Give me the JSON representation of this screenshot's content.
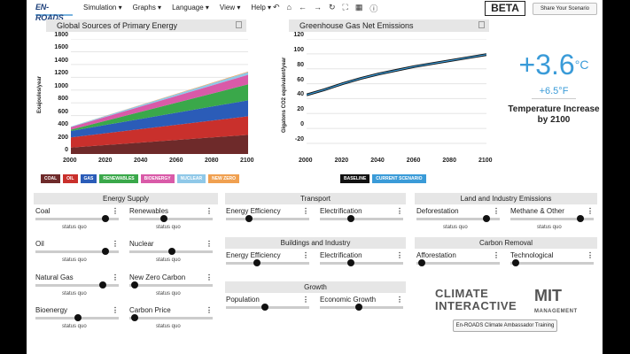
{
  "logo": "EN-ROADS",
  "menus": [
    "Simulation ▾",
    "Graphs ▾",
    "Language ▾",
    "View ▾",
    "Help ▾"
  ],
  "tools": [
    "↶",
    "⌂",
    "←",
    "→",
    "↻",
    "⛶",
    "▦",
    "ⓘ"
  ],
  "beta": "BETA",
  "share": "Share Your Scenario",
  "energy_chart": {
    "title": "Global Sources of Primary Energy",
    "ylabel": "Exajoules/year",
    "yticks": [
      "1800",
      "1600",
      "1400",
      "1200",
      "1000",
      "800",
      "600",
      "400",
      "200",
      "0"
    ],
    "xticks": [
      "2000",
      "2020",
      "2040",
      "2060",
      "2080",
      "2100"
    ],
    "legend": [
      {
        "label": "COAL",
        "color": "#6e2a2a"
      },
      {
        "label": "OIL",
        "color": "#c9302c"
      },
      {
        "label": "GAS",
        "color": "#2b5cb8"
      },
      {
        "label": "RENEWABLES",
        "color": "#3aa84a"
      },
      {
        "label": "BIOENERGY",
        "color": "#d95aa8"
      },
      {
        "label": "NUCLEAR",
        "color": "#8fc8e8"
      },
      {
        "label": "NEW ZERO",
        "color": "#f0a050"
      }
    ]
  },
  "ghg_chart": {
    "title": "Greenhouse Gas Net Emissions",
    "ylabel": "Gigatons CO2 equivalent/year",
    "yticks": [
      "120",
      "100",
      "80",
      "60",
      "40",
      "20",
      "0",
      "-20"
    ],
    "xticks": [
      "2000",
      "2020",
      "2040",
      "2060",
      "2080",
      "2100"
    ],
    "legend": [
      {
        "label": "BASELINE",
        "color": "#111"
      },
      {
        "label": "CURRENT SCENARIO",
        "color": "#3a9bd8"
      }
    ]
  },
  "chart_data": [
    {
      "type": "area",
      "title": "Global Sources of Primary Energy",
      "ylabel": "Exajoules/year",
      "ylim": [
        0,
        1800
      ],
      "x": [
        2000,
        2100
      ],
      "series": [
        {
          "name": "COAL",
          "values": [
            100,
            300
          ]
        },
        {
          "name": "OIL",
          "values": [
            160,
            290
          ]
        },
        {
          "name": "GAS",
          "values": [
            100,
            250
          ]
        },
        {
          "name": "RENEWABLES",
          "values": [
            20,
            250
          ]
        },
        {
          "name": "BIOENERGY",
          "values": [
            40,
            150
          ]
        },
        {
          "name": "NUCLEAR",
          "values": [
            10,
            40
          ]
        },
        {
          "name": "NEW ZERO",
          "values": [
            0,
            10
          ]
        }
      ]
    },
    {
      "type": "line",
      "title": "Greenhouse Gas Net Emissions",
      "ylabel": "Gigatons CO2 equivalent/year",
      "ylim": [
        -20,
        120
      ],
      "x": [
        2000,
        2010,
        2020,
        2030,
        2040,
        2050,
        2060,
        2070,
        2080,
        2090,
        2100
      ],
      "series": [
        {
          "name": "BASELINE",
          "values": [
            45,
            52,
            60,
            67,
            73,
            78,
            83,
            87,
            91,
            95,
            99
          ]
        },
        {
          "name": "CURRENT SCENARIO",
          "values": [
            45,
            52,
            60,
            67,
            73,
            78,
            83,
            87,
            91,
            95,
            99
          ]
        }
      ]
    }
  ],
  "temperature": {
    "celsius": "+3.6",
    "c_unit": "°C",
    "fahrenheit": "+6.5°F",
    "label": "Temperature Increase by 2100"
  },
  "sections": {
    "energy": "Energy Supply",
    "transport": "Transport",
    "buildings": "Buildings and Industry",
    "growth": "Growth",
    "land": "Land and Industry Emissions",
    "carbon": "Carbon Removal"
  },
  "sliders": [
    {
      "name": "Coal",
      "pos": 0.85
    },
    {
      "name": "Renewables",
      "pos": 0.4
    },
    {
      "name": "Oil",
      "pos": 0.85
    },
    {
      "name": "Nuclear",
      "pos": 0.5
    },
    {
      "name": "Natural Gas",
      "pos": 0.82
    },
    {
      "name": "New Zero Carbon",
      "pos": 0.02
    },
    {
      "name": "Bioenergy",
      "pos": 0.5
    },
    {
      "name": "Carbon Price",
      "pos": 0.02
    },
    {
      "name": "Energy Efficiency",
      "pos": 0.25
    },
    {
      "name": "Electrification",
      "pos": 0.35
    },
    {
      "name": "Energy Efficiency",
      "pos": 0.35
    },
    {
      "name": "Electrification",
      "pos": 0.35
    },
    {
      "name": "Population",
      "pos": 0.45
    },
    {
      "name": "Economic Growth",
      "pos": 0.45
    },
    {
      "name": "Deforestation",
      "pos": 0.85
    },
    {
      "name": "Methane & Other",
      "pos": 0.85
    },
    {
      "name": "Afforestation",
      "pos": 0.02
    },
    {
      "name": "Technological",
      "pos": 0.02
    }
  ],
  "status": "status quo",
  "ci": "CLIMATE INTERACTIVE",
  "mit": "MIT",
  "mit_sub": "MANAGEMENT",
  "ambassador": "En-ROADS Climate Ambassador Training"
}
